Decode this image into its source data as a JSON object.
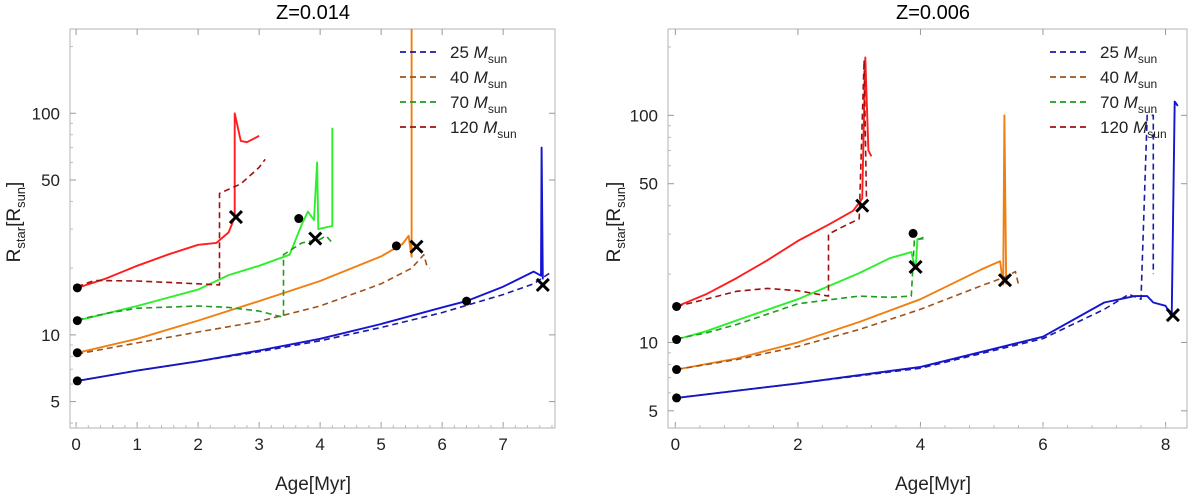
{
  "chart_data": [
    {
      "type": "line",
      "title": "Z=0.014",
      "xlabel": "Age[Myr]",
      "ylabel": "R_star[R_sun]",
      "ylabel_main": "R",
      "ylabel_sub1": "star",
      "ylabel_mid": "[R",
      "ylabel_sub2": "sun",
      "ylabel_end": "]",
      "xscale": "linear",
      "yscale": "log",
      "xlim": [
        -0.1,
        7.85
      ],
      "ylim": [
        3.8,
        240
      ],
      "xticks": [
        0,
        1,
        2,
        3,
        4,
        5,
        6,
        7
      ],
      "xtick_labels": [
        "0",
        "1",
        "2",
        "3",
        "4",
        "5",
        "6",
        "7"
      ],
      "yticks": [
        5,
        10,
        50,
        100
      ],
      "ytick_labels": [
        "5",
        "10",
        "50",
        "100"
      ],
      "legend_placement": "top-right",
      "grid": false,
      "legend": [
        {
          "mass": "25",
          "unit_main": "M",
          "unit_sub": "sun",
          "color": "#1a1aa6"
        },
        {
          "mass": "40",
          "unit_main": "M",
          "unit_sub": "sun",
          "color": "#a0521b"
        },
        {
          "mass": "70",
          "unit_main": "M",
          "unit_sub": "sun",
          "color": "#1f9c1f"
        },
        {
          "mass": "120",
          "unit_main": "M",
          "unit_sub": "sun",
          "color": "#a01010"
        }
      ],
      "series": [
        {
          "mass": "25",
          "style": "solid",
          "color": "#1414d2",
          "points": [
            [
              0.02,
              6.2
            ],
            [
              1,
              6.9
            ],
            [
              2,
              7.6
            ],
            [
              3,
              8.5
            ],
            [
              4,
              9.6
            ],
            [
              5,
              11.2
            ],
            [
              6,
              13.3
            ],
            [
              6.4,
              14.2
            ],
            [
              7,
              16.5
            ],
            [
              7.5,
              19.3
            ],
            [
              7.62,
              18.5
            ],
            [
              7.63,
              70
            ],
            [
              7.65,
              17.8
            ]
          ]
        },
        {
          "mass": "25",
          "style": "dashed",
          "color": "#1a1aa6",
          "points": [
            [
              0.02,
              6.2
            ],
            [
              1,
              6.9
            ],
            [
              2,
              7.6
            ],
            [
              3,
              8.4
            ],
            [
              4,
              9.4
            ],
            [
              5,
              10.8
            ],
            [
              6,
              12.6
            ],
            [
              7,
              15.2
            ],
            [
              7.5,
              17
            ],
            [
              7.8,
              19.3
            ]
          ]
        },
        {
          "mass": "40",
          "style": "solid",
          "color": "#f07f10",
          "points": [
            [
              0.02,
              8.3
            ],
            [
              1,
              9.6
            ],
            [
              2,
              11.6
            ],
            [
              3,
              14.2
            ],
            [
              4,
              17.5
            ],
            [
              5,
              22.6
            ],
            [
              5.35,
              25.7
            ],
            [
              5.45,
              28
            ],
            [
              5.5,
              22.5
            ],
            [
              5.5,
              240
            ]
          ]
        },
        {
          "mass": "40",
          "style": "dashed",
          "color": "#a0521b",
          "points": [
            [
              0.02,
              8.2
            ],
            [
              1,
              9.2
            ],
            [
              2,
              10.3
            ],
            [
              3,
              11.5
            ],
            [
              4,
              13.5
            ],
            [
              5,
              17
            ],
            [
              5.5,
              20
            ],
            [
              5.7,
              23
            ],
            [
              5.75,
              20.5
            ],
            [
              5.8,
              20
            ]
          ]
        },
        {
          "mass": "70",
          "style": "solid",
          "color": "#2cf02c",
          "points": [
            [
              0.02,
              11.6
            ],
            [
              0.5,
              12.5
            ],
            [
              1,
              13.5
            ],
            [
              2,
              16
            ],
            [
              2.5,
              18.6
            ],
            [
              3,
              20.5
            ],
            [
              3.5,
              23
            ],
            [
              3.7,
              31.5
            ],
            [
              3.8,
              36
            ],
            [
              3.9,
              33
            ],
            [
              3.95,
              60
            ],
            [
              3.97,
              30
            ],
            [
              4.2,
              31
            ],
            [
              4.2,
              86
            ]
          ]
        },
        {
          "mass": "70",
          "style": "dashed",
          "color": "#1f9c1f",
          "points": [
            [
              0.02,
              11.7
            ],
            [
              0.5,
              12.5
            ],
            [
              1,
              13.2
            ],
            [
              2,
              13.5
            ],
            [
              2.5,
              13.3
            ],
            [
              3,
              12.8
            ],
            [
              3.4,
              12
            ],
            [
              3.4,
              23
            ],
            [
              3.7,
              26
            ],
            [
              4,
              27
            ],
            [
              4.1,
              28
            ],
            [
              4.2,
              26
            ]
          ]
        },
        {
          "mass": "120",
          "style": "solid",
          "color": "#ff1e1e",
          "points": [
            [
              0.02,
              16.3
            ],
            [
              0.5,
              18
            ],
            [
              1,
              20.5
            ],
            [
              1.5,
              23
            ],
            [
              2,
              25.5
            ],
            [
              2.3,
              26
            ],
            [
              2.5,
              29
            ],
            [
              2.6,
              34
            ],
            [
              2.6,
              100
            ],
            [
              2.7,
              75
            ],
            [
              2.8,
              74
            ],
            [
              3,
              79
            ]
          ]
        },
        {
          "mass": "120",
          "style": "dashed",
          "color": "#a01010",
          "points": [
            [
              0.02,
              16.5
            ],
            [
              0.3,
              17.6
            ],
            [
              1,
              17.5
            ],
            [
              2,
              17
            ],
            [
              2.35,
              16.8
            ],
            [
              2.35,
              43.5
            ],
            [
              2.7,
              48
            ],
            [
              3,
              57
            ],
            [
              3.1,
              62
            ]
          ]
        }
      ],
      "start_markers": [
        [
          0.02,
          6.2
        ],
        [
          0.02,
          8.3
        ],
        [
          0.02,
          11.6
        ],
        [
          0.02,
          16.3
        ],
        [
          6.4,
          14.2
        ],
        [
          5.25,
          25.2
        ],
        [
          3.65,
          33.5
        ]
      ],
      "end_markers": [
        [
          7.65,
          16.8
        ],
        [
          5.58,
          25
        ],
        [
          3.92,
          27.2
        ],
        [
          2.62,
          34
        ]
      ]
    },
    {
      "type": "line",
      "title": "Z=0.006",
      "xlabel": "Age[Myr]",
      "ylabel": "R_star[R_sun]",
      "ylabel_main": "R",
      "ylabel_sub1": "star",
      "ylabel_mid": "[R",
      "ylabel_sub2": "sun",
      "ylabel_end": "]",
      "xscale": "linear",
      "yscale": "log",
      "xlim": [
        -0.12,
        8.35
      ],
      "ylim": [
        4.2,
        240
      ],
      "xticks": [
        0,
        2,
        4,
        6,
        8
      ],
      "xtick_labels": [
        "0",
        "2",
        "4",
        "6",
        "8"
      ],
      "yticks": [
        5,
        10,
        50,
        100
      ],
      "ytick_labels": [
        "5",
        "10",
        "50",
        "100"
      ],
      "legend_placement": "top-right",
      "grid": false,
      "legend": [
        {
          "mass": "25",
          "unit_main": "M",
          "unit_sub": "sun",
          "color": "#1a1aa6"
        },
        {
          "mass": "40",
          "unit_main": "M",
          "unit_sub": "sun",
          "color": "#a0521b"
        },
        {
          "mass": "70",
          "unit_main": "M",
          "unit_sub": "sun",
          "color": "#1f9c1f"
        },
        {
          "mass": "120",
          "unit_main": "M",
          "unit_sub": "sun",
          "color": "#a01010"
        }
      ],
      "series": [
        {
          "mass": "25",
          "style": "solid",
          "color": "#1414d2",
          "points": [
            [
              0.02,
              5.7
            ],
            [
              2,
              6.6
            ],
            [
              4,
              7.8
            ],
            [
              6,
              10.6
            ],
            [
              7,
              15
            ],
            [
              7.5,
              16
            ],
            [
              7.7,
              16
            ],
            [
              7.8,
              15
            ],
            [
              8,
              14.5
            ],
            [
              8.1,
              13
            ],
            [
              8.15,
              115
            ],
            [
              8.2,
              110
            ]
          ]
        },
        {
          "mass": "25",
          "style": "dashed",
          "color": "#1a1aa6",
          "points": [
            [
              0.02,
              5.7
            ],
            [
              2,
              6.6
            ],
            [
              4,
              7.7
            ],
            [
              6,
              10.4
            ],
            [
              7,
              14
            ],
            [
              7.4,
              16.3
            ],
            [
              7.6,
              15.5
            ],
            [
              7.7,
              100
            ],
            [
              7.8,
              100
            ],
            [
              7.8,
              20
            ]
          ]
        },
        {
          "mass": "40",
          "style": "solid",
          "color": "#f07f10",
          "points": [
            [
              0.02,
              7.6
            ],
            [
              1,
              8.5
            ],
            [
              2,
              10
            ],
            [
              3,
              12.3
            ],
            [
              4,
              15.5
            ],
            [
              5,
              21
            ],
            [
              5.3,
              22.8
            ],
            [
              5.35,
              18
            ],
            [
              5.37,
              100
            ],
            [
              5.4,
              18
            ]
          ]
        },
        {
          "mass": "40",
          "style": "dashed",
          "color": "#a0521b",
          "points": [
            [
              0.02,
              7.6
            ],
            [
              1,
              8.4
            ],
            [
              2,
              9.6
            ],
            [
              3,
              11.4
            ],
            [
              4,
              14
            ],
            [
              5,
              17.8
            ],
            [
              5.4,
              19.5
            ],
            [
              5.55,
              20.5
            ],
            [
              5.6,
              18
            ]
          ]
        },
        {
          "mass": "70",
          "style": "solid",
          "color": "#2cf02c",
          "points": [
            [
              0.02,
              10.3
            ],
            [
              0.5,
              11.2
            ],
            [
              1,
              12.5
            ],
            [
              2,
              15.5
            ],
            [
              3,
              20.2
            ],
            [
              3.5,
              23.5
            ],
            [
              3.85,
              25
            ],
            [
              3.92,
              21
            ],
            [
              3.95,
              28.5
            ],
            [
              4.05,
              28.5
            ]
          ]
        },
        {
          "mass": "70",
          "style": "dashed",
          "color": "#1f9c1f",
          "points": [
            [
              0.02,
              10.4
            ],
            [
              0.5,
              11
            ],
            [
              1,
              12
            ],
            [
              2,
              14.8
            ],
            [
              2.5,
              15.4
            ],
            [
              3,
              16
            ],
            [
              3.5,
              15.8
            ],
            [
              3.85,
              16
            ],
            [
              3.9,
              28
            ],
            [
              4.05,
              29
            ]
          ]
        },
        {
          "mass": "120",
          "style": "solid",
          "color": "#ff1e1e",
          "points": [
            [
              0.02,
              14.4
            ],
            [
              0.5,
              16.3
            ],
            [
              1,
              19.2
            ],
            [
              1.5,
              23
            ],
            [
              2,
              28
            ],
            [
              2.5,
              33
            ],
            [
              2.9,
              38
            ],
            [
              3.05,
              43
            ],
            [
              3.1,
              180
            ],
            [
              3.15,
              70
            ],
            [
              3.2,
              66
            ]
          ]
        },
        {
          "mass": "120",
          "style": "dashed",
          "color": "#a01010",
          "points": [
            [
              0.02,
              14.4
            ],
            [
              0.5,
              15.5
            ],
            [
              1,
              16.8
            ],
            [
              1.5,
              17.3
            ],
            [
              2,
              16.9
            ],
            [
              2.5,
              16
            ],
            [
              2.5,
              30
            ],
            [
              2.8,
              33
            ],
            [
              3,
              35
            ],
            [
              3.08,
              175
            ],
            [
              3.12,
              42
            ]
          ]
        }
      ],
      "start_markers": [
        [
          0.02,
          5.7
        ],
        [
          0.02,
          7.6
        ],
        [
          0.02,
          10.3
        ],
        [
          0.02,
          14.4
        ],
        [
          3.88,
          30.2
        ]
      ],
      "end_markers": [
        [
          8.12,
          13.2
        ],
        [
          5.38,
          18.8
        ],
        [
          3.92,
          21.5
        ],
        [
          3.05,
          40
        ]
      ]
    }
  ]
}
